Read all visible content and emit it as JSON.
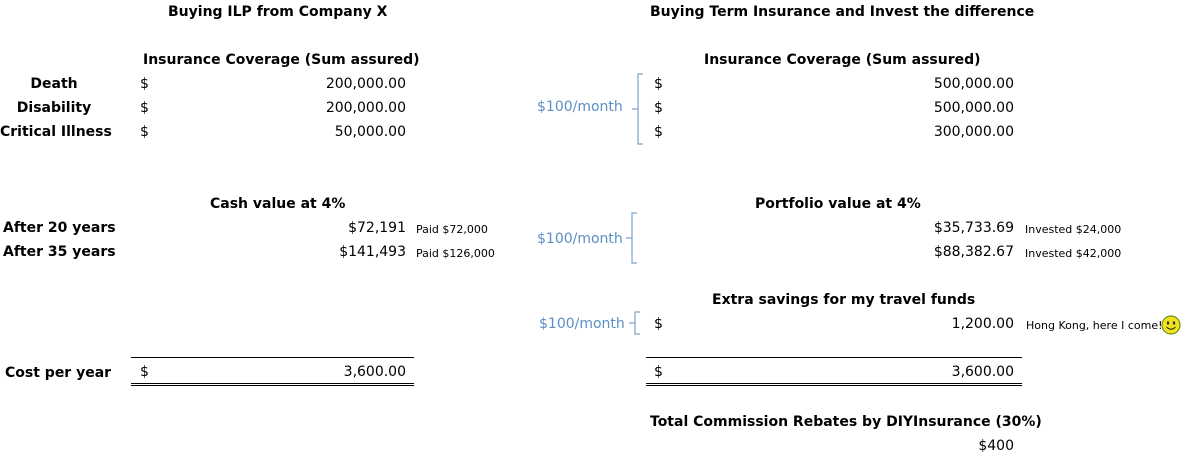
{
  "left": {
    "title": "Buying ILP from Company X",
    "coverage_header": "Insurance Coverage (Sum assured)",
    "rows": [
      {
        "label": "Death",
        "currency": "$",
        "value": "200,000.00"
      },
      {
        "label": "Disability",
        "currency": "$",
        "value": "200,000.00"
      },
      {
        "label": "Critical Illness",
        "currency": "$",
        "value": "50,000.00"
      }
    ],
    "cash_header": "Cash value at 4%",
    "cash_rows": [
      {
        "label": "After 20 years",
        "value": "$72,191",
        "note": "Paid $72,000"
      },
      {
        "label": "After 35 years",
        "value": "$141,493",
        "note": "Paid $126,000"
      }
    ],
    "cost_label": "Cost per year",
    "cost_currency": "$",
    "cost_value": "3,600.00"
  },
  "right": {
    "title": "Buying Term Insurance and Invest the difference",
    "coverage_header": "Insurance Coverage (Sum assured)",
    "coverage_rows": [
      {
        "currency": "$",
        "value": "500,000.00"
      },
      {
        "currency": "$",
        "value": "500,000.00"
      },
      {
        "currency": "$",
        "value": "300,000.00"
      }
    ],
    "coverage_monthly": "$100/month",
    "portfolio_header": "Portfolio value at 4%",
    "portfolio_rows": [
      {
        "value": "$35,733.69",
        "note": "Invested $24,000"
      },
      {
        "value": "$88,382.67",
        "note": "Invested $42,000"
      }
    ],
    "portfolio_monthly": "$100/month",
    "extra_header": "Extra savings for my travel funds",
    "extra_monthly": "$100/month",
    "extra_currency": "$",
    "extra_value": "1,200.00",
    "extra_note": "Hong Kong, here I come!",
    "cost_currency": "$",
    "cost_value": "3,600.00",
    "rebate_header": "Total Commission Rebates by DIYInsurance (30%)",
    "rebate_value": "$400"
  },
  "colors": {
    "accent": "#5b8fc6",
    "smiley": "#f2e21a"
  },
  "icons": {
    "smiley": "smiley-face-icon",
    "brace": "bracket-icon"
  }
}
